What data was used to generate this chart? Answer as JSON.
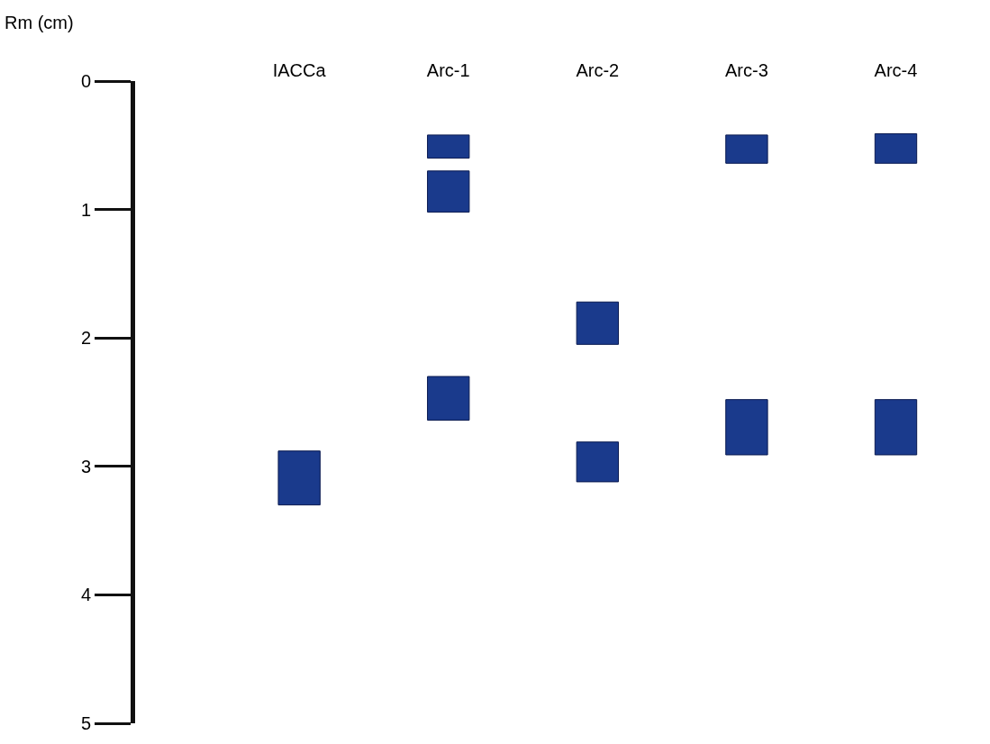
{
  "chart_data": {
    "type": "bar",
    "ylabel": "Rm (cm)",
    "categories": [
      "IACCa",
      "Arc-1",
      "Arc-2",
      "Arc-3",
      "Arc-4"
    ],
    "series": [
      {
        "color": "#1a3a8c",
        "base": [
          null,
          0.42,
          null,
          0.42,
          0.41
        ],
        "values": [
          null,
          0.18,
          null,
          0.22,
          0.23
        ]
      },
      {
        "color": "#1a3a8c",
        "base": [
          null,
          0.7,
          1.72,
          null,
          null
        ],
        "values": [
          null,
          0.32,
          0.33,
          null,
          null
        ]
      },
      {
        "color": "#1a3a8c",
        "base": [
          2.88,
          2.3,
          2.81,
          2.48,
          2.48
        ],
        "values": [
          0.42,
          0.34,
          0.31,
          0.43,
          0.43
        ]
      }
    ],
    "ylim": [
      5,
      0
    ],
    "yticks": [
      0,
      1,
      2,
      3,
      4,
      5
    ]
  }
}
